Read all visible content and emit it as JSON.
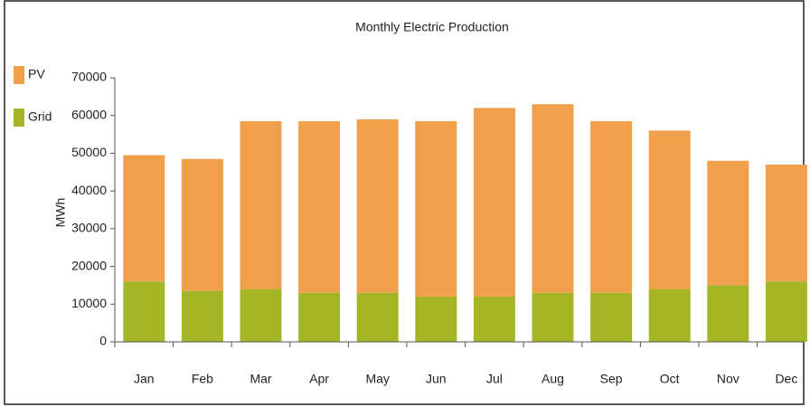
{
  "chart_data": {
    "type": "stacked_bar",
    "title": "Monthly Electric Production",
    "y_label": "MWh",
    "categories": [
      "Jan",
      "Feb",
      "Mar",
      "Apr",
      "May",
      "Jun",
      "Jul",
      "Aug",
      "Sep",
      "Oct",
      "Nov",
      "Dec"
    ],
    "series": [
      {
        "name": "Grid",
        "color": "#a4b526",
        "values": [
          16000,
          13500,
          14000,
          13000,
          13000,
          12000,
          12000,
          13000,
          13000,
          14000,
          15000,
          16000
        ]
      },
      {
        "name": "PV",
        "color": "#f0a04b",
        "values": [
          33500,
          35000,
          44500,
          45500,
          46000,
          46500,
          50000,
          50000,
          45500,
          42000,
          33000,
          31000
        ]
      }
    ],
    "ylim": [
      0,
      70000
    ],
    "yticks": [
      0,
      10000,
      20000,
      30000,
      40000,
      50000,
      60000,
      70000
    ],
    "grid": false,
    "legend": "left"
  }
}
